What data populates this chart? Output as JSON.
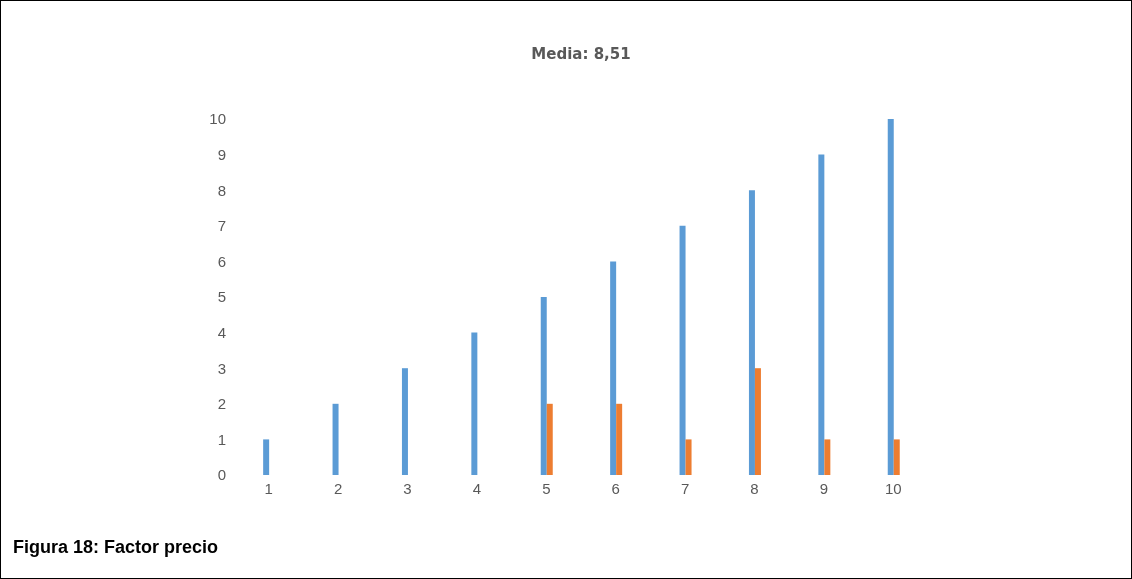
{
  "chart_data": {
    "type": "bar",
    "title": "Media: 8,51",
    "categories": [
      "1",
      "2",
      "3",
      "4",
      "5",
      "6",
      "7",
      "8",
      "9",
      "10"
    ],
    "series": [
      {
        "color": "#5b9bd5",
        "values": [
          1,
          2,
          3,
          4,
          5,
          6,
          7,
          8,
          9,
          10
        ]
      },
      {
        "color": "#ed7d31",
        "values": [
          null,
          null,
          null,
          null,
          2,
          2,
          1,
          3,
          1,
          1
        ]
      }
    ],
    "ylim": [
      0,
      10
    ],
    "yticks": [
      0,
      1,
      2,
      3,
      4,
      5,
      6,
      7,
      8,
      9,
      10
    ],
    "grid": false,
    "annotations": [
      "Figura 18: Factor precio"
    ]
  }
}
